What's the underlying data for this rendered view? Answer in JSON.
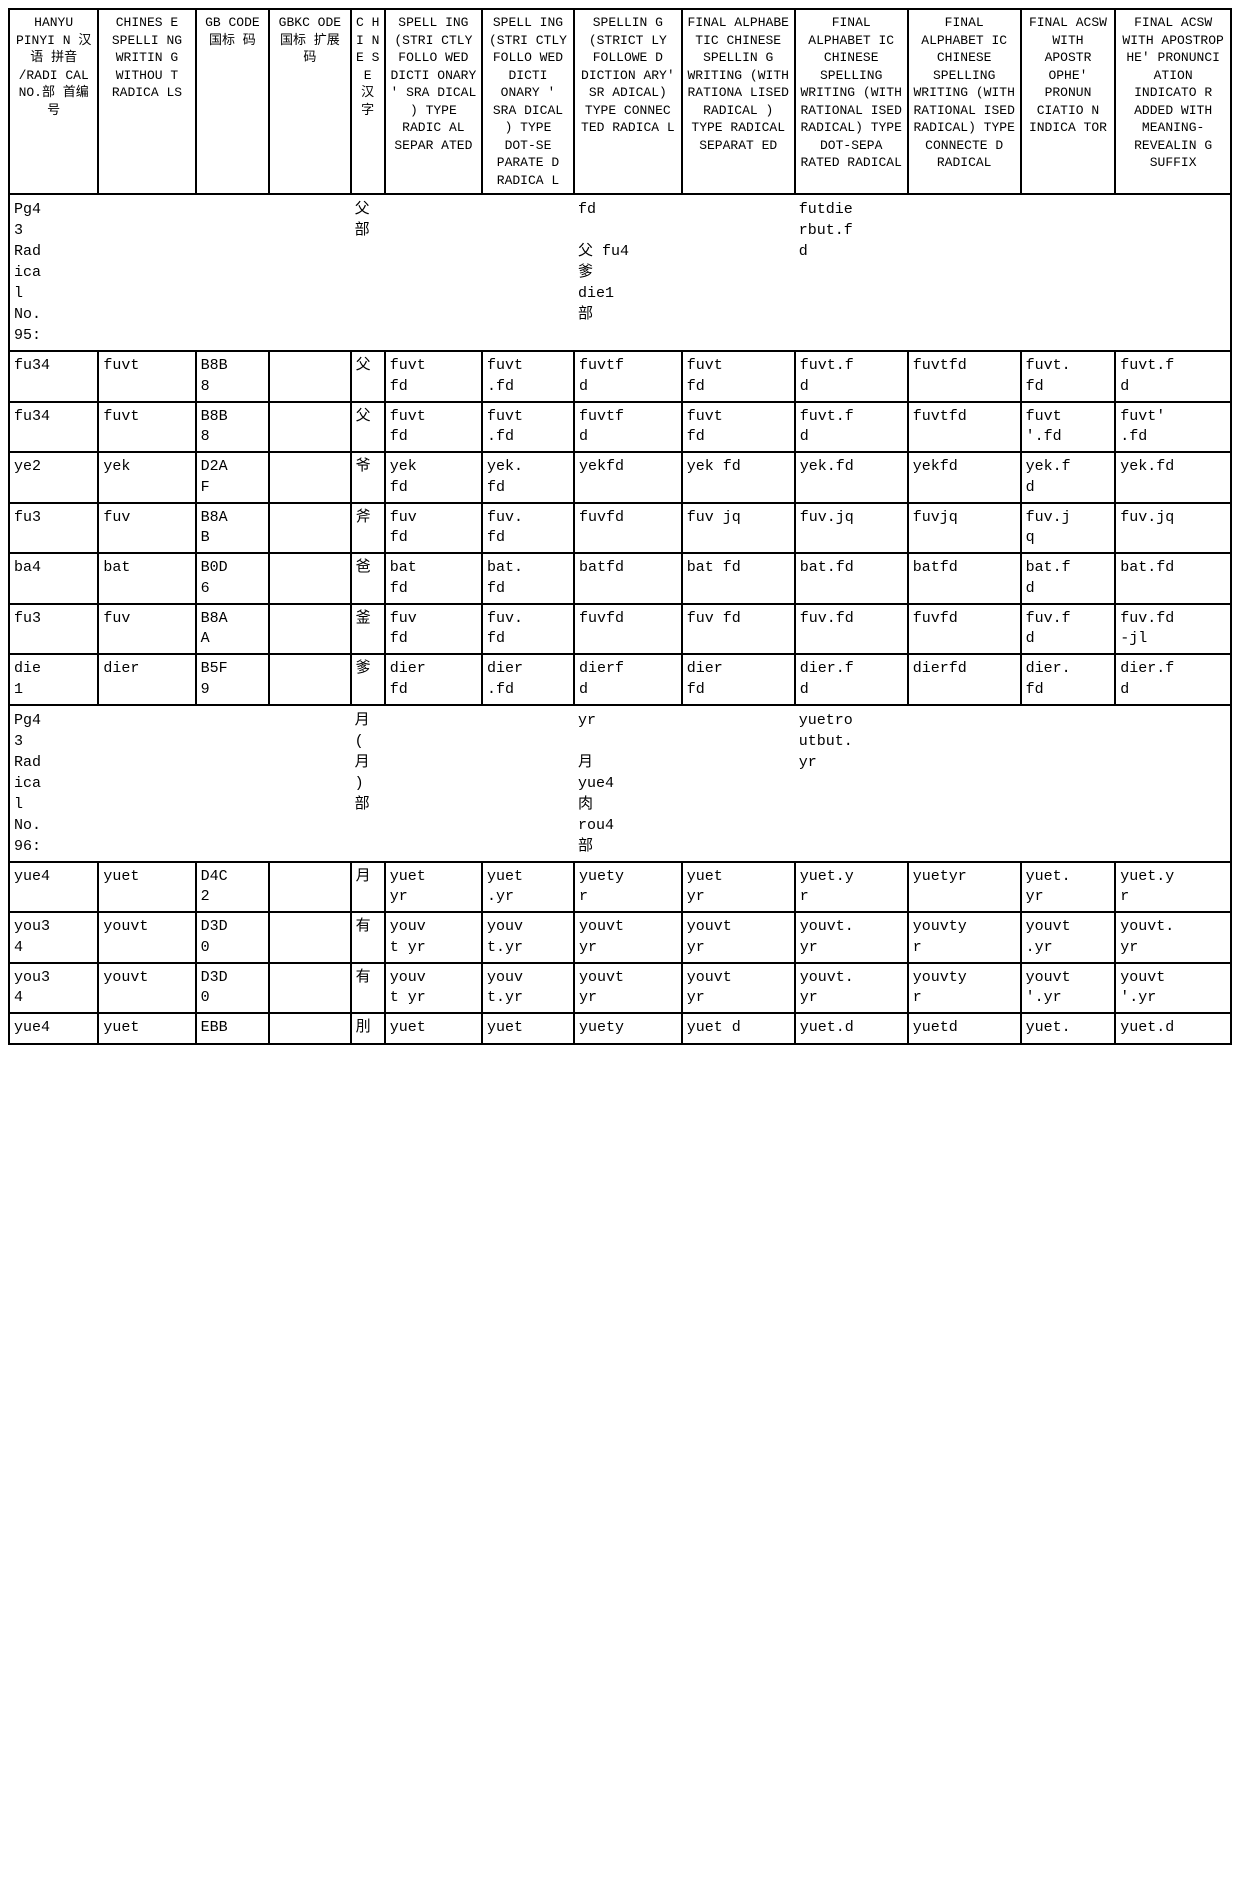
{
  "headers": [
    "HANYU PINYI N 汉语 拼音 /RADI CAL NO.部 首编 号",
    "CHINES E SPELLI NG WRITIN G WITHOU T RADICA LS",
    "GB CODE 国标 码",
    "GBKC ODE 国标 扩展 码",
    "C H I N E S E 汉 字",
    "SPELL ING (STRI CTLY FOLLO WED DICTI ONARY ' SRA DICAL ) TYPE RADIC AL SEPAR ATED",
    "SPELL ING (STRI CTLY FOLLO WED DICTI ONARY ' SRA DICAL ) TYPE DOT-SE PARATE D RADICA L",
    "SPELLIN G (STRICT LY FOLLOWE D DICTION ARY' SR ADICAL) TYPE CONNEC TED RADICA L",
    "FINAL ALPHABE TIC CHINESE SPELLIN G WRITING (WITH RATIONA LISED RADICAL ) TYPE RADICAL SEPARAT ED",
    "FINAL ALPHABET IC CHINESE SPELLING WRITING (WITH RATIONAL ISED RADICAL) TYPE DOT-SEPA RATED RADICAL",
    "FINAL ALPHABET IC CHINESE SPELLING WRITING (WITH RATIONAL ISED RADICAL) TYPE CONNECTE D RADICAL",
    "FINAL ACSW WITH APOSTR OPHE' PRONUN CIATIO N INDICA TOR",
    "FINAL ACSW WITH APOSTROP HE' PRONUNCI ATION INDICATO R ADDED WITH MEANING- REVEALIN G SUFFIX"
  ],
  "sections": [
    {
      "label": "Pg4\n3\nRad\nica\nl\nNo.\n95:",
      "col4": "父\n部",
      "col7": "fd\n\n父 fu4\n爹\ndie1\n部",
      "col9": "futdie\nrbut.f\nd",
      "rows": [
        [
          "fu34",
          "fuvt",
          "B8B\n8",
          "",
          "父",
          "fuvt\nfd",
          "fuvt\n.fd",
          "fuvtf\nd",
          "fuvt\nfd",
          "fuvt.f\nd",
          "fuvtfd",
          "fuvt.\nfd",
          "fuvt.f\nd"
        ],
        [
          "fu34",
          "fuvt",
          "B8B\n8",
          "",
          "父",
          "fuvt\nfd",
          "fuvt\n.fd",
          "fuvtf\nd",
          "fuvt\nfd",
          "fuvt.f\nd",
          "fuvtfd",
          "fuvt\n'.fd",
          "fuvt'\n.fd"
        ],
        [
          "ye2",
          "yek",
          "D2A\nF",
          "",
          "爷",
          "yek\nfd",
          "yek.\nfd",
          "yekfd",
          "yek fd",
          "yek.fd",
          "yekfd",
          "yek.f\nd",
          "yek.fd"
        ],
        [
          "fu3",
          "fuv",
          "B8A\nB",
          "",
          "斧",
          "fuv\nfd",
          "fuv.\nfd",
          "fuvfd",
          "fuv jq",
          "fuv.jq",
          "fuvjq",
          "fuv.j\nq",
          "fuv.jq"
        ],
        [
          "ba4",
          "bat",
          "B0D\n6",
          "",
          "爸",
          "bat\nfd",
          "bat.\nfd",
          "batfd",
          "bat fd",
          "bat.fd",
          "batfd",
          "bat.f\nd",
          "bat.fd"
        ],
        [
          "fu3",
          "fuv",
          "B8A\nA",
          "",
          "釜",
          "fuv\nfd",
          "fuv.\nfd",
          "fuvfd",
          "fuv fd",
          "fuv.fd",
          "fuvfd",
          "fuv.f\nd",
          "fuv.fd\n-jl"
        ],
        [
          "die\n1",
          "dier",
          "B5F\n9",
          "",
          "爹",
          "dier\nfd",
          "dier\n.fd",
          "dierf\nd",
          "dier\nfd",
          "dier.f\nd",
          "dierfd",
          "dier.\nfd",
          "dier.f\nd"
        ]
      ]
    },
    {
      "label": "Pg4\n3\nRad\nica\nl\nNo.\n96:",
      "col4": "月\n(\n月\n)\n部",
      "col7": "yr\n\n月\nyue4\n肉\nrou4\n部",
      "col9": "yuetro\nutbut.\nyr",
      "rows": [
        [
          "yue4",
          "yuet",
          "D4C\n2",
          "",
          "月",
          "yuet\nyr",
          "yuet\n.yr",
          "yuety\nr",
          "yuet\nyr",
          "yuet.y\nr",
          "yuetyr",
          "yuet.\nyr",
          "yuet.y\nr"
        ],
        [
          "you3\n4",
          "youvt",
          "D3D\n0",
          "",
          "有",
          "youv\nt yr",
          "youv\nt.yr",
          "youvt\nyr",
          "youvt\nyr",
          "youvt.\nyr",
          "youvty\nr",
          "youvt\n.yr",
          "youvt.\nyr"
        ],
        [
          "you3\n4",
          "youvt",
          "D3D\n0",
          "",
          "有",
          "youv\nt yr",
          "youv\nt.yr",
          "youvt\nyr",
          "youvt\nyr",
          "youvt.\nyr",
          "youvty\nr",
          "youvt\n'.yr",
          "youvt\n'.yr"
        ],
        [
          "yue4",
          "yuet",
          "EBB",
          "",
          "刖",
          "yuet",
          "yuet",
          "yuety",
          "yuet d",
          "yuet.d",
          "yuetd",
          "yuet.",
          "yuet.d"
        ]
      ]
    }
  ]
}
